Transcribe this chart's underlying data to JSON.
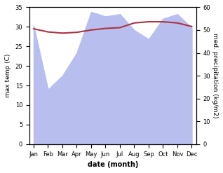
{
  "months": [
    "Jan",
    "Feb",
    "Mar",
    "Apr",
    "May",
    "Jun",
    "Jul",
    "Aug",
    "Sep",
    "Oct",
    "Nov",
    "Dec"
  ],
  "temp": [
    29.5,
    28.7,
    28.4,
    28.6,
    29.2,
    29.6,
    29.8,
    31.0,
    31.3,
    31.3,
    31.0,
    30.1
  ],
  "precip": [
    52,
    24,
    30,
    40,
    58,
    56,
    57,
    50,
    46,
    55,
    57,
    51
  ],
  "temp_color": "#aa3344",
  "precip_fill_color": "#b8bfee",
  "title": "",
  "xlabel": "date (month)",
  "ylabel_left": "max temp (C)",
  "ylabel_right": "med. precipitation (kg/m2)",
  "ylim_left": [
    0,
    35
  ],
  "ylim_right": [
    0,
    60
  ],
  "yticks_left": [
    0,
    5,
    10,
    15,
    20,
    25,
    30,
    35
  ],
  "yticks_right": [
    0,
    10,
    20,
    30,
    40,
    50,
    60
  ],
  "bg_color": "#ffffff"
}
